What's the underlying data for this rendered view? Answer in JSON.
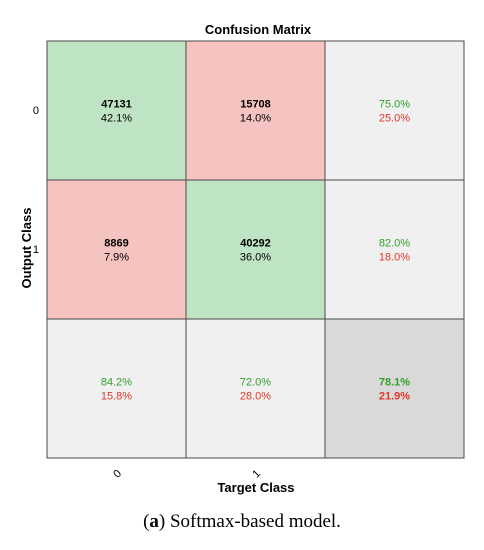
{
  "chart_data": {
    "type": "heatmap",
    "title": "Confusion Matrix",
    "xlabel": "Target Class",
    "ylabel": "Output Class",
    "classes": [
      "0",
      "1"
    ],
    "counts": [
      [
        47131,
        15708
      ],
      [
        8869,
        40292
      ]
    ],
    "cell_percents": [
      [
        "42.1%",
        "14.0%"
      ],
      [
        "7.9%",
        "36.0%"
      ]
    ],
    "row_summary": [
      {
        "correct": "75.0%",
        "error": "25.0%"
      },
      {
        "correct": "82.0%",
        "error": "18.0%"
      }
    ],
    "column_summary": [
      {
        "correct": "84.2%",
        "error": "15.8%"
      },
      {
        "correct": "72.0%",
        "error": "28.0%"
      }
    ],
    "overall": {
      "correct": "78.1%",
      "error": "21.9%"
    },
    "colors": {
      "correct_cell": "#bfe4c4",
      "error_cell": "#f5c4c0",
      "summary_cell": "#f0f0f0",
      "overall_cell": "#d9d9d9",
      "correct_text": "#33a02c",
      "error_text": "#e0392b"
    }
  },
  "caption": {
    "label": "a",
    "text": " Softmax-based model."
  }
}
